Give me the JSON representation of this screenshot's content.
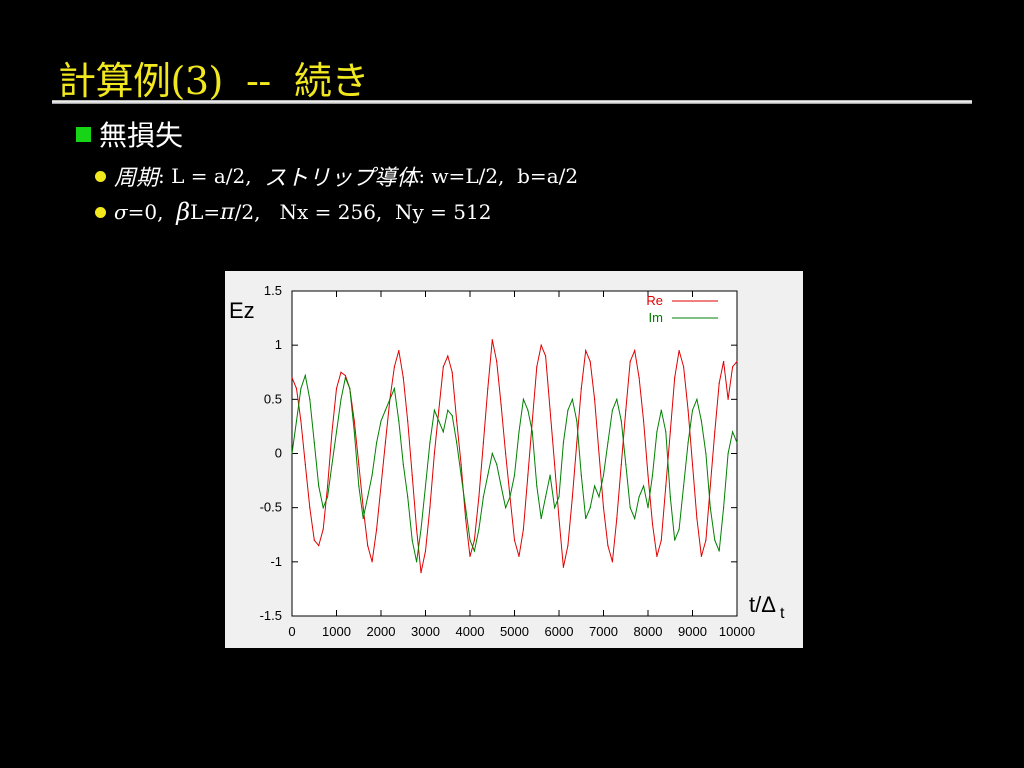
{
  "slide": {
    "title": "計算例(3)  --  続き",
    "bullet": "無損失",
    "sub1": {
      "jp1": "周期",
      "t1": ": L = a/2,  ",
      "jp2": "ストリップ導体",
      "t2": ": w=L/2,  b=a/2"
    },
    "sub2": {
      "sigma": "σ",
      "t1": "=0,  ",
      "beta": "β",
      "t2": "L=",
      "pi": "π",
      "t3": "/2,   Nx = 256,  Ny = 512"
    }
  },
  "colors": {
    "title": "#f2e81e",
    "re": "#e00000",
    "im": "#008000",
    "bullet_square": "#17d417"
  },
  "chart_data": {
    "type": "line",
    "xlabel_main": "t/Δ",
    "xlabel_sub": "t",
    "ylabel": "Ez",
    "xlim": [
      0,
      10000
    ],
    "ylim": [
      -1.5,
      1.5
    ],
    "xticks": [
      "0",
      "1000",
      "2000",
      "3000",
      "4000",
      "5000",
      "6000",
      "7000",
      "8000",
      "9000",
      "10000"
    ],
    "yticks": [
      "1.5",
      "1",
      "0.5",
      "0",
      "-0.5",
      "-1",
      "-1.5"
    ],
    "grid": false,
    "legend_position": "top-right",
    "series": [
      {
        "name": "Re",
        "color": "#e00000",
        "x": [
          0,
          100,
          200,
          300,
          400,
          500,
          600,
          700,
          800,
          900,
          1000,
          1100,
          1200,
          1300,
          1400,
          1500,
          1600,
          1700,
          1800,
          1900,
          2000,
          2100,
          2200,
          2300,
          2400,
          2500,
          2600,
          2700,
          2800,
          2900,
          3000,
          3100,
          3200,
          3300,
          3400,
          3500,
          3600,
          3700,
          3800,
          3900,
          4000,
          4100,
          4200,
          4300,
          4400,
          4500,
          4600,
          4700,
          4800,
          4900,
          5000,
          5100,
          5200,
          5300,
          5400,
          5500,
          5600,
          5700,
          5800,
          5900,
          6000,
          6100,
          6200,
          6300,
          6400,
          6500,
          6600,
          6700,
          6800,
          6900,
          7000,
          7100,
          7200,
          7300,
          7400,
          7500,
          7600,
          7700,
          7800,
          7900,
          8000,
          8100,
          8200,
          8300,
          8400,
          8500,
          8600,
          8700,
          8800,
          8900,
          9000,
          9100,
          9200,
          9300,
          9400,
          9500,
          9600,
          9700,
          9800,
          9900,
          10000
        ],
        "y": [
          0.7,
          0.6,
          0.3,
          -0.1,
          -0.5,
          -0.8,
          -0.85,
          -0.7,
          -0.3,
          0.2,
          0.6,
          0.75,
          0.72,
          0.6,
          0.3,
          -0.1,
          -0.5,
          -0.85,
          -1.0,
          -0.7,
          -0.3,
          0.1,
          0.5,
          0.8,
          0.95,
          0.7,
          0.3,
          -0.2,
          -0.7,
          -1.1,
          -0.9,
          -0.5,
          0.0,
          0.4,
          0.8,
          0.9,
          0.75,
          0.3,
          -0.1,
          -0.6,
          -0.95,
          -0.8,
          -0.4,
          0.1,
          0.6,
          1.05,
          0.85,
          0.45,
          0.0,
          -0.4,
          -0.8,
          -0.95,
          -0.7,
          -0.2,
          0.3,
          0.8,
          1.0,
          0.9,
          0.4,
          -0.1,
          -0.6,
          -1.05,
          -0.85,
          -0.4,
          0.1,
          0.6,
          0.95,
          0.85,
          0.5,
          0.0,
          -0.5,
          -0.85,
          -1.0,
          -0.6,
          -0.1,
          0.4,
          0.85,
          0.95,
          0.7,
          0.3,
          -0.2,
          -0.65,
          -0.95,
          -0.8,
          -0.3,
          0.2,
          0.7,
          0.95,
          0.8,
          0.4,
          -0.1,
          -0.6,
          -0.95,
          -0.8,
          -0.3,
          0.2,
          0.65,
          0.85,
          0.5,
          0.8,
          0.85
        ]
      },
      {
        "name": "Im",
        "color": "#008000",
        "x": [
          0,
          100,
          200,
          300,
          400,
          500,
          600,
          700,
          800,
          900,
          1000,
          1100,
          1200,
          1300,
          1400,
          1500,
          1600,
          1700,
          1800,
          1900,
          2000,
          2100,
          2200,
          2300,
          2400,
          2500,
          2600,
          2700,
          2800,
          2900,
          3000,
          3100,
          3200,
          3300,
          3400,
          3500,
          3600,
          3700,
          3800,
          3900,
          4000,
          4100,
          4200,
          4300,
          4400,
          4500,
          4600,
          4700,
          4800,
          4900,
          5000,
          5100,
          5200,
          5300,
          5400,
          5500,
          5600,
          5700,
          5800,
          5900,
          6000,
          6100,
          6200,
          6300,
          6400,
          6500,
          6600,
          6700,
          6800,
          6900,
          7000,
          7100,
          7200,
          7300,
          7400,
          7500,
          7600,
          7700,
          7800,
          7900,
          8000,
          8100,
          8200,
          8300,
          8400,
          8500,
          8600,
          8700,
          8800,
          8900,
          9000,
          9100,
          9200,
          9300,
          9400,
          9500,
          9600,
          9700,
          9800,
          9900,
          10000
        ],
        "y": [
          0.0,
          0.3,
          0.6,
          0.72,
          0.5,
          0.1,
          -0.3,
          -0.5,
          -0.4,
          -0.1,
          0.2,
          0.5,
          0.7,
          0.6,
          0.2,
          -0.3,
          -0.6,
          -0.4,
          -0.2,
          0.1,
          0.3,
          0.4,
          0.5,
          0.6,
          0.3,
          -0.1,
          -0.4,
          -0.8,
          -1.0,
          -0.7,
          -0.3,
          0.1,
          0.4,
          0.3,
          0.2,
          0.4,
          0.35,
          0.1,
          -0.2,
          -0.5,
          -0.8,
          -0.9,
          -0.7,
          -0.4,
          -0.2,
          0.0,
          -0.1,
          -0.3,
          -0.5,
          -0.4,
          -0.2,
          0.2,
          0.5,
          0.4,
          0.2,
          -0.3,
          -0.6,
          -0.4,
          -0.2,
          -0.5,
          -0.4,
          0.1,
          0.4,
          0.5,
          0.3,
          -0.2,
          -0.6,
          -0.5,
          -0.3,
          -0.4,
          -0.2,
          0.1,
          0.4,
          0.5,
          0.3,
          -0.1,
          -0.5,
          -0.6,
          -0.4,
          -0.3,
          -0.5,
          -0.2,
          0.2,
          0.4,
          0.2,
          -0.4,
          -0.8,
          -0.7,
          -0.3,
          0.1,
          0.4,
          0.5,
          0.3,
          0.0,
          -0.5,
          -0.8,
          -0.9,
          -0.5,
          0.0,
          0.2,
          0.1
        ]
      }
    ]
  }
}
